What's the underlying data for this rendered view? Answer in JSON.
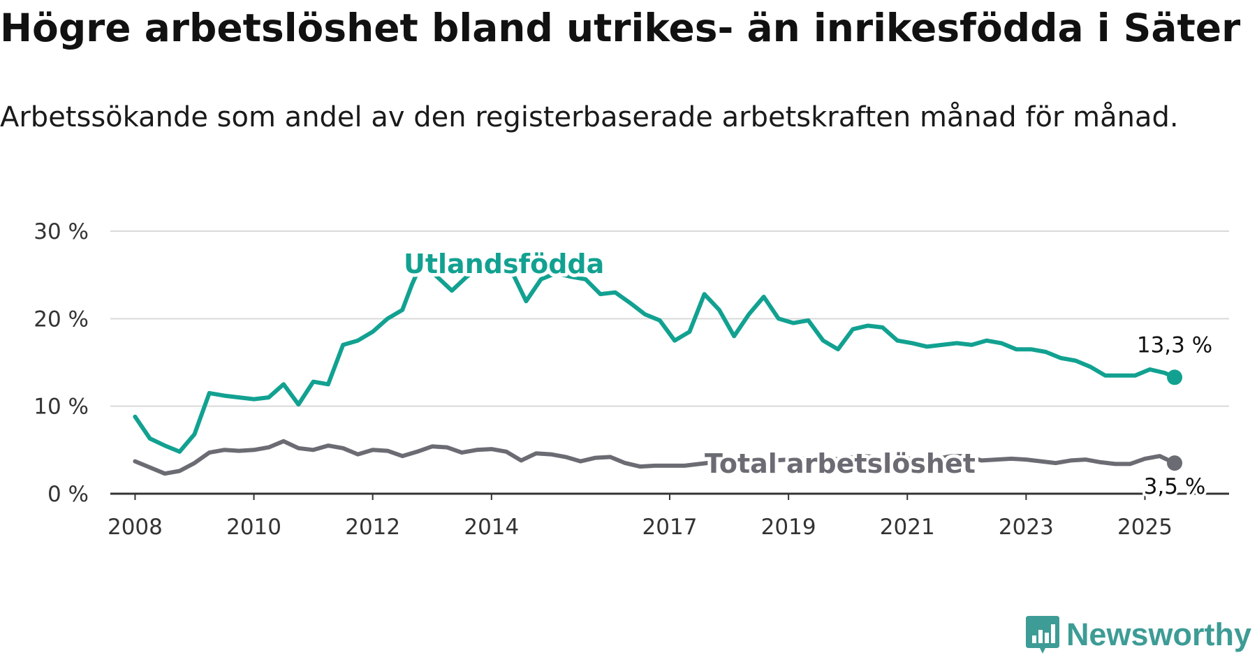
{
  "title": "Högre arbetslöshet bland utrikes- än inrikesfödda i Säter",
  "subtitle": "Arbetssökande som andel av den registerbaserade arbetskraften månad för månad.",
  "logo": {
    "text": "Newsworthy",
    "icon": "newsworthy-bar-chart-icon",
    "color": "#3d9c95"
  },
  "chart_data": {
    "type": "line",
    "title": "Högre arbetslöshet bland utrikes- än inrikesfödda i Säter",
    "subtitle": "Arbetssökande som andel av den registerbaserade arbetskraften månad för månad.",
    "xlabel": "",
    "ylabel": "",
    "x_ticks": [
      "2008",
      "2010",
      "2012",
      "2014",
      "2017",
      "2019",
      "2021",
      "2023",
      "2025"
    ],
    "y_ticks": [
      "0 %",
      "10 %",
      "20 %",
      "30 %"
    ],
    "ylim": [
      0,
      30
    ],
    "xlim": [
      "2007-08",
      "2026-06"
    ],
    "grid": "horizontal",
    "legend": "inline labels",
    "series": [
      {
        "name": "Utlandsfödda",
        "color": "#12a191",
        "end_label": "13,3 %",
        "points": [
          [
            "2008-01",
            8.8
          ],
          [
            "2008-04",
            6.3
          ],
          [
            "2008-07",
            5.5
          ],
          [
            "2008-10",
            4.8
          ],
          [
            "2009-01",
            6.8
          ],
          [
            "2009-04",
            11.5
          ],
          [
            "2009-07",
            11.2
          ],
          [
            "2009-10",
            11.0
          ],
          [
            "2010-01",
            10.8
          ],
          [
            "2010-04",
            11.0
          ],
          [
            "2010-07",
            12.5
          ],
          [
            "2010-10",
            10.2
          ],
          [
            "2011-01",
            12.8
          ],
          [
            "2011-04",
            12.5
          ],
          [
            "2011-07",
            17.0
          ],
          [
            "2011-10",
            17.5
          ],
          [
            "2012-01",
            18.5
          ],
          [
            "2012-04",
            20.0
          ],
          [
            "2012-07",
            21.0
          ],
          [
            "2012-09",
            24.0
          ],
          [
            "2012-11",
            26.5
          ],
          [
            "2013-02",
            24.8
          ],
          [
            "2013-05",
            23.2
          ],
          [
            "2013-08",
            24.8
          ],
          [
            "2013-11",
            26.0
          ],
          [
            "2014-02",
            26.5
          ],
          [
            "2014-05",
            25.5
          ],
          [
            "2014-08",
            22.0
          ],
          [
            "2014-11",
            24.5
          ],
          [
            "2015-02",
            25.2
          ],
          [
            "2015-05",
            24.8
          ],
          [
            "2015-08",
            24.5
          ],
          [
            "2015-11",
            22.8
          ],
          [
            "2016-02",
            23.0
          ],
          [
            "2016-05",
            21.8
          ],
          [
            "2016-08",
            20.5
          ],
          [
            "2016-11",
            19.8
          ],
          [
            "2017-02",
            17.5
          ],
          [
            "2017-05",
            18.5
          ],
          [
            "2017-08",
            22.8
          ],
          [
            "2017-11",
            21.0
          ],
          [
            "2018-02",
            18.0
          ],
          [
            "2018-05",
            20.5
          ],
          [
            "2018-08",
            22.5
          ],
          [
            "2018-11",
            20.0
          ],
          [
            "2019-02",
            19.5
          ],
          [
            "2019-05",
            19.8
          ],
          [
            "2019-08",
            17.5
          ],
          [
            "2019-11",
            16.5
          ],
          [
            "2020-02",
            18.8
          ],
          [
            "2020-05",
            19.2
          ],
          [
            "2020-08",
            19.0
          ],
          [
            "2020-11",
            17.5
          ],
          [
            "2021-02",
            17.2
          ],
          [
            "2021-05",
            16.8
          ],
          [
            "2021-08",
            17.0
          ],
          [
            "2021-11",
            17.2
          ],
          [
            "2022-02",
            17.0
          ],
          [
            "2022-05",
            17.5
          ],
          [
            "2022-08",
            17.2
          ],
          [
            "2022-11",
            16.5
          ],
          [
            "2023-02",
            16.5
          ],
          [
            "2023-05",
            16.2
          ],
          [
            "2023-08",
            15.5
          ],
          [
            "2023-11",
            15.2
          ],
          [
            "2024-02",
            14.5
          ],
          [
            "2024-05",
            13.5
          ],
          [
            "2024-08",
            13.5
          ],
          [
            "2024-11",
            13.5
          ],
          [
            "2025-02",
            14.2
          ],
          [
            "2025-05",
            13.8
          ],
          [
            "2025-07",
            13.3
          ]
        ]
      },
      {
        "name": "Total arbetslöshet",
        "color": "#6b6b73",
        "end_label": "3,5 %",
        "points": [
          [
            "2008-01",
            3.7
          ],
          [
            "2008-04",
            3.0
          ],
          [
            "2008-07",
            2.3
          ],
          [
            "2008-10",
            2.6
          ],
          [
            "2009-01",
            3.5
          ],
          [
            "2009-04",
            4.7
          ],
          [
            "2009-07",
            5.0
          ],
          [
            "2009-10",
            4.9
          ],
          [
            "2010-01",
            5.0
          ],
          [
            "2010-04",
            5.3
          ],
          [
            "2010-07",
            6.0
          ],
          [
            "2010-10",
            5.2
          ],
          [
            "2011-01",
            5.0
          ],
          [
            "2011-04",
            5.5
          ],
          [
            "2011-07",
            5.2
          ],
          [
            "2011-10",
            4.5
          ],
          [
            "2012-01",
            5.0
          ],
          [
            "2012-04",
            4.9
          ],
          [
            "2012-07",
            4.3
          ],
          [
            "2012-10",
            4.8
          ],
          [
            "2013-01",
            5.4
          ],
          [
            "2013-04",
            5.3
          ],
          [
            "2013-07",
            4.7
          ],
          [
            "2013-10",
            5.0
          ],
          [
            "2014-01",
            5.1
          ],
          [
            "2014-04",
            4.8
          ],
          [
            "2014-07",
            3.8
          ],
          [
            "2014-10",
            4.6
          ],
          [
            "2015-01",
            4.5
          ],
          [
            "2015-04",
            4.2
          ],
          [
            "2015-07",
            3.7
          ],
          [
            "2015-10",
            4.1
          ],
          [
            "2016-01",
            4.2
          ],
          [
            "2016-04",
            3.5
          ],
          [
            "2016-07",
            3.1
          ],
          [
            "2016-10",
            3.2
          ],
          [
            "2017-01",
            3.2
          ],
          [
            "2017-04",
            3.2
          ],
          [
            "2017-07",
            3.4
          ],
          [
            "2017-10",
            3.6
          ],
          [
            "2018-01",
            3.9
          ],
          [
            "2018-04",
            3.7
          ],
          [
            "2018-07",
            3.7
          ],
          [
            "2018-10",
            3.8
          ],
          [
            "2019-01",
            3.9
          ],
          [
            "2019-04",
            4.0
          ],
          [
            "2019-07",
            4.0
          ],
          [
            "2019-10",
            3.9
          ],
          [
            "2020-01",
            4.1
          ],
          [
            "2020-04",
            4.3
          ],
          [
            "2020-07",
            4.2
          ],
          [
            "2020-10",
            4.0
          ],
          [
            "2021-01",
            4.0
          ],
          [
            "2021-04",
            4.0
          ],
          [
            "2021-07",
            4.0
          ],
          [
            "2021-10",
            4.3
          ],
          [
            "2022-01",
            4.3
          ],
          [
            "2022-04",
            3.8
          ],
          [
            "2022-07",
            3.9
          ],
          [
            "2022-10",
            4.0
          ],
          [
            "2023-01",
            3.9
          ],
          [
            "2023-04",
            3.7
          ],
          [
            "2023-07",
            3.5
          ],
          [
            "2023-10",
            3.8
          ],
          [
            "2024-01",
            3.9
          ],
          [
            "2024-04",
            3.6
          ],
          [
            "2024-07",
            3.4
          ],
          [
            "2024-10",
            3.4
          ],
          [
            "2025-01",
            4.0
          ],
          [
            "2025-04",
            4.3
          ],
          [
            "2025-07",
            3.5
          ]
        ]
      }
    ]
  }
}
